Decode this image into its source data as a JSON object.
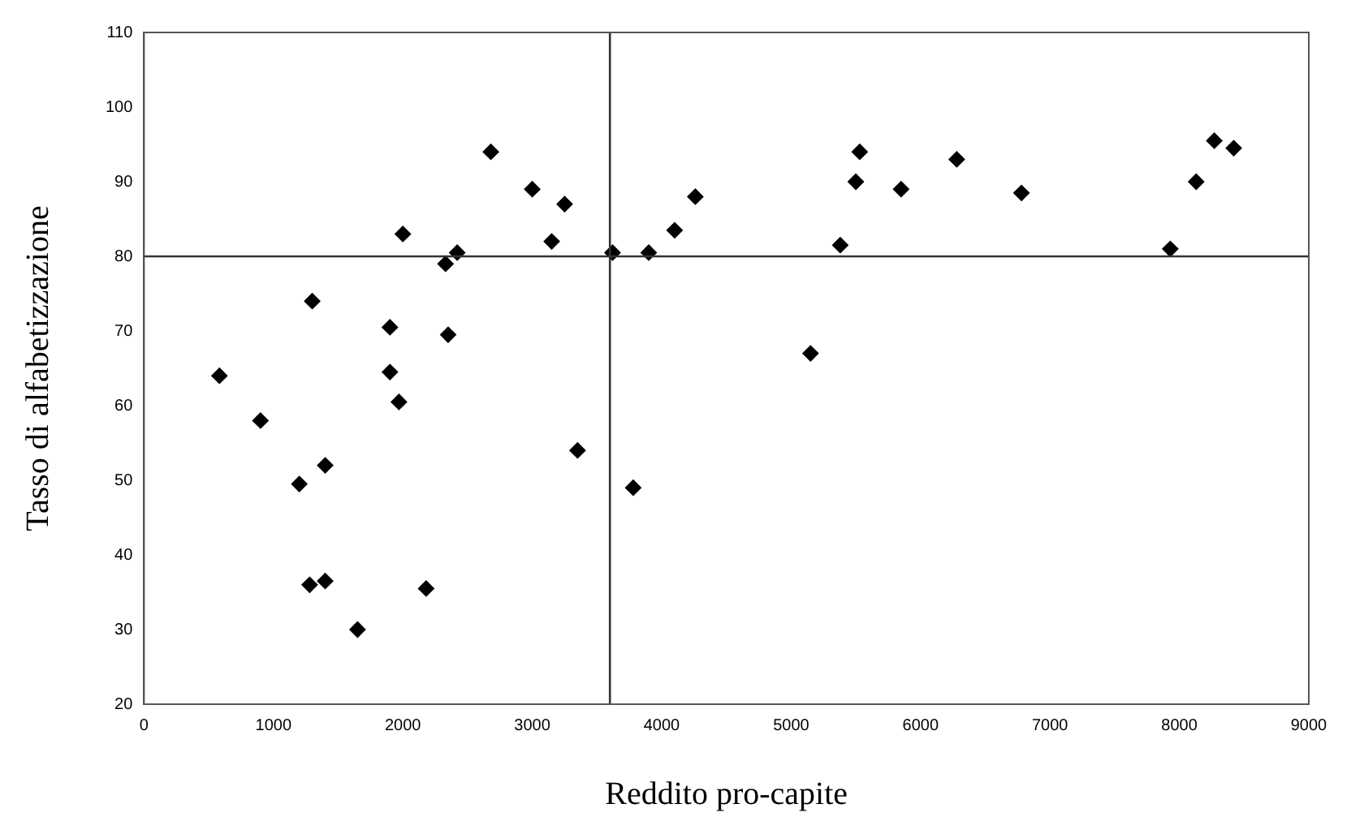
{
  "chart_data": {
    "type": "scatter",
    "xlabel": "Reddito pro-capite",
    "ylabel": "Tasso di alfabetizzazione",
    "x": [
      583,
      900,
      1200,
      1300,
      1280,
      1400,
      1400,
      1650,
      1900,
      1900,
      1970,
      2000,
      2180,
      2330,
      2350,
      2420,
      2680,
      3000,
      3150,
      3250,
      3350,
      3620,
      3780,
      3900,
      4100,
      4260,
      5150,
      5380,
      5500,
      5530,
      5850,
      6280,
      6780,
      7930,
      8130,
      8270,
      8420
    ],
    "series": [
      {
        "color": "#000000",
        "values": [
          64,
          58,
          49.5,
          74,
          36,
          36.5,
          52,
          30,
          70.5,
          64.5,
          60.5,
          83,
          35.5,
          79,
          69.5,
          80.5,
          94,
          89,
          82,
          87,
          54,
          80.5,
          49,
          80.5,
          83.5,
          88,
          67,
          81.5,
          90,
          94,
          89,
          93,
          88.5,
          81,
          90,
          95.5,
          94.5
        ]
      }
    ],
    "xlim": [
      0,
      9000
    ],
    "xticks": [
      0,
      1000,
      2000,
      3000,
      4000,
      5000,
      6000,
      7000,
      8000,
      9000
    ],
    "ylim": [
      20,
      110
    ],
    "yticks": [
      20,
      30,
      40,
      50,
      60,
      70,
      80,
      90,
      100,
      110
    ],
    "ref_lines": [
      {
        "axis": "x",
        "value": 3600,
        "color": "#333333"
      },
      {
        "axis": "y",
        "value": 80,
        "color": "#333333"
      }
    ],
    "grid": false,
    "legend": false,
    "marker": "diamond"
  }
}
